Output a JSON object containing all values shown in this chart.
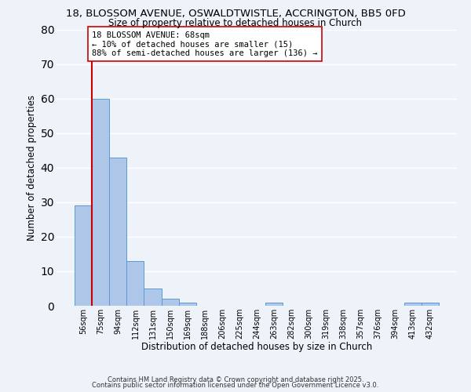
{
  "title": "18, BLOSSOM AVENUE, OSWALDTWISTLE, ACCRINGTON, BB5 0FD",
  "subtitle": "Size of property relative to detached houses in Church",
  "xlabel": "Distribution of detached houses by size in Church",
  "ylabel": "Number of detached properties",
  "categories": [
    "56sqm",
    "75sqm",
    "94sqm",
    "112sqm",
    "131sqm",
    "150sqm",
    "169sqm",
    "188sqm",
    "206sqm",
    "225sqm",
    "244sqm",
    "263sqm",
    "282sqm",
    "300sqm",
    "319sqm",
    "338sqm",
    "357sqm",
    "376sqm",
    "394sqm",
    "413sqm",
    "432sqm"
  ],
  "values": [
    29,
    60,
    43,
    13,
    5,
    2,
    1,
    0,
    0,
    0,
    0,
    1,
    0,
    0,
    0,
    0,
    0,
    0,
    0,
    1,
    1
  ],
  "bar_color": "#aec6e8",
  "bar_edge_color": "#5b9bd5",
  "vline_color": "#cc0000",
  "vline_x_index": 0.5,
  "ylim": [
    0,
    80
  ],
  "yticks": [
    0,
    10,
    20,
    30,
    40,
    50,
    60,
    70,
    80
  ],
  "annotation_text": "18 BLOSSOM AVENUE: 68sqm\n← 10% of detached houses are smaller (15)\n88% of semi-detached houses are larger (136) →",
  "annotation_box_color": "#ffffff",
  "annotation_box_edge": "#cc0000",
  "footer_line1": "Contains HM Land Registry data © Crown copyright and database right 2025.",
  "footer_line2": "Contains public sector information licensed under the Open Government Licence v3.0.",
  "background_color": "#eef2f9",
  "grid_color": "#ffffff",
  "title_fontsize": 9.5,
  "subtitle_fontsize": 8.5,
  "tick_fontsize": 7,
  "label_fontsize": 8.5,
  "footer_fontsize": 6,
  "annotation_fontsize": 7.5
}
